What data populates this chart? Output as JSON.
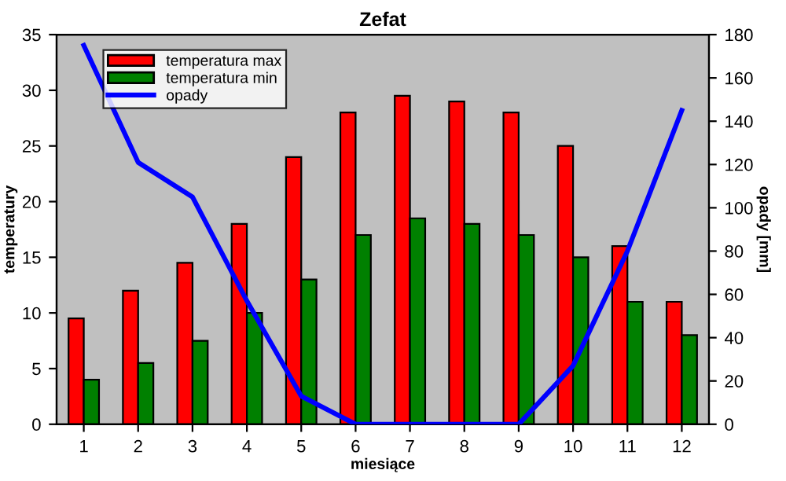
{
  "chart_data": {
    "type": "bar",
    "title": "Zefat",
    "xlabel": "miesiące",
    "ylabel": "temperatury",
    "y2label": "opady [mm]",
    "categories": [
      "1",
      "2",
      "3",
      "4",
      "5",
      "6",
      "7",
      "8",
      "9",
      "10",
      "11",
      "12"
    ],
    "series": [
      {
        "name": "temperatura max",
        "color": "#ff0000",
        "values": [
          9.5,
          12,
          14.5,
          18,
          24,
          28,
          29.5,
          29,
          28,
          25,
          16,
          11
        ]
      },
      {
        "name": "temperatura min",
        "color": "#008000",
        "values": [
          4,
          5.5,
          7.5,
          10,
          13,
          17,
          18.5,
          18,
          17,
          15,
          11,
          8
        ]
      },
      {
        "name": "opady",
        "type": "line",
        "axis": "y2",
        "color": "#0000ff",
        "values": [
          175,
          121,
          105,
          57,
          13,
          0,
          0,
          0,
          0,
          27,
          80,
          145
        ]
      }
    ],
    "ylim": [
      0,
      35
    ],
    "yticks": [
      0,
      5,
      10,
      15,
      20,
      25,
      30,
      35
    ],
    "y2lim": [
      0,
      180
    ],
    "y2ticks": [
      0,
      20,
      40,
      60,
      80,
      100,
      120,
      140,
      160,
      180
    ],
    "grid": false,
    "legend": "top left",
    "marker": "none",
    "line_style": "solid"
  }
}
